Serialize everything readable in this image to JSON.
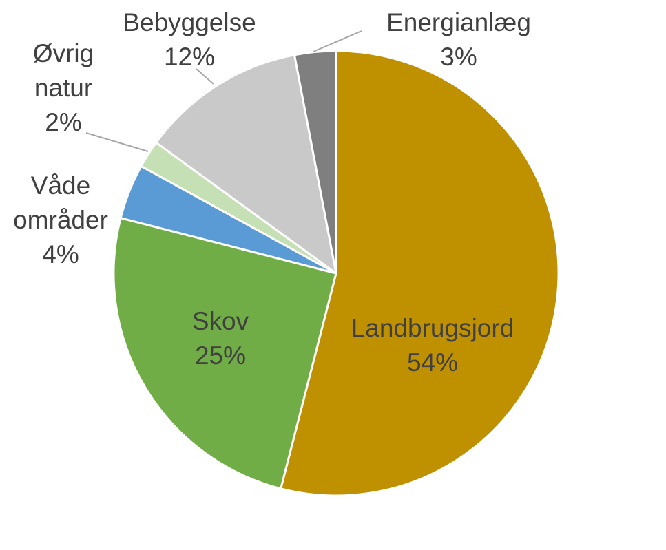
{
  "chart_data": {
    "type": "pie",
    "categories": [
      "Landbrugsjord",
      "Skov",
      "Våde områder",
      "Øvrig natur",
      "Bebyggelse",
      "Energianlæg"
    ],
    "values": [
      54,
      25,
      4,
      2,
      12,
      3
    ],
    "value_labels": [
      "54%",
      "25%",
      "4%",
      "2%",
      "12%",
      "3%"
    ],
    "colors": [
      "#bf9000",
      "#70ad47",
      "#5b9bd5",
      "#c5e0b4",
      "#c9c9c9",
      "#7f7f7f"
    ]
  }
}
